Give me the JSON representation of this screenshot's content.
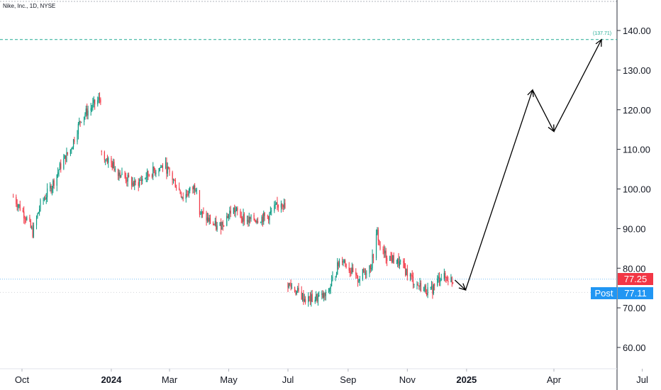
{
  "symbol_title": "Nike, Inc., 1D, NYSE",
  "last_price_label": "77.25",
  "post_label": "Post",
  "post_price_label": "77.11",
  "target_label": "(137.71)",
  "colors": {
    "up": "#089981",
    "down": "#f23645",
    "target_line": "#22ab94",
    "price_line": "#2196f3",
    "axis_text": "#131722"
  },
  "chart_data": {
    "type": "candlestick",
    "title": "Nike, Inc., 1D, NYSE",
    "x_ticks": [
      "Oct",
      "2024",
      "Mar",
      "May",
      "Jul",
      "Sep",
      "Nov",
      "2025",
      "Apr",
      "Jul"
    ],
    "y_ticks": [
      "60.00",
      "70.00",
      "80.00",
      "90.00",
      "100.00",
      "110.00",
      "120.00",
      "130.00",
      "140.00"
    ],
    "ylim": [
      55,
      150
    ],
    "last_price": 77.25,
    "post_market_price": 77.11,
    "target_price": 137.71,
    "price_path": [
      {
        "date": "2023-09-22",
        "price": 98
      },
      {
        "date": "2023-10-05",
        "price": 93
      },
      {
        "date": "2023-10-12",
        "price": 89
      },
      {
        "date": "2023-10-20",
        "price": 96
      },
      {
        "date": "2023-11-01",
        "price": 101
      },
      {
        "date": "2023-11-10",
        "price": 106
      },
      {
        "date": "2023-11-20",
        "price": 110
      },
      {
        "date": "2023-12-01",
        "price": 118
      },
      {
        "date": "2023-12-21",
        "price": 123
      },
      {
        "date": "2023-12-22",
        "price": 109
      },
      {
        "date": "2024-01-10",
        "price": 104
      },
      {
        "date": "2024-01-25",
        "price": 101
      },
      {
        "date": "2024-02-10",
        "price": 104
      },
      {
        "date": "2024-02-25",
        "price": 106
      },
      {
        "date": "2024-03-15",
        "price": 98
      },
      {
        "date": "2024-03-29",
        "price": 101
      },
      {
        "date": "2024-04-01",
        "price": 94
      },
      {
        "date": "2024-04-20",
        "price": 90
      },
      {
        "date": "2024-05-05",
        "price": 95
      },
      {
        "date": "2024-05-20",
        "price": 92
      },
      {
        "date": "2024-06-10",
        "price": 93
      },
      {
        "date": "2024-06-25",
        "price": 97
      },
      {
        "date": "2024-06-28",
        "price": 95
      },
      {
        "date": "2024-07-01",
        "price": 76
      },
      {
        "date": "2024-07-20",
        "price": 72
      },
      {
        "date": "2024-08-10",
        "price": 73
      },
      {
        "date": "2024-08-25",
        "price": 83
      },
      {
        "date": "2024-09-10",
        "price": 77
      },
      {
        "date": "2024-09-25",
        "price": 81
      },
      {
        "date": "2024-10-01",
        "price": 89
      },
      {
        "date": "2024-10-05",
        "price": 84
      },
      {
        "date": "2024-10-25",
        "price": 81
      },
      {
        "date": "2024-11-10",
        "price": 76
      },
      {
        "date": "2024-11-25",
        "price": 74
      },
      {
        "date": "2024-12-05",
        "price": 78
      },
      {
        "date": "2024-12-18",
        "price": 77
      }
    ],
    "projection": [
      {
        "date": "2024-12-20",
        "price": 77.0
      },
      {
        "date": "2024-12-31",
        "price": 74.5
      },
      {
        "date": "2025-03-10",
        "price": 125.0
      },
      {
        "date": "2025-04-01",
        "price": 114.5
      },
      {
        "date": "2025-05-20",
        "price": 137.7
      }
    ]
  }
}
